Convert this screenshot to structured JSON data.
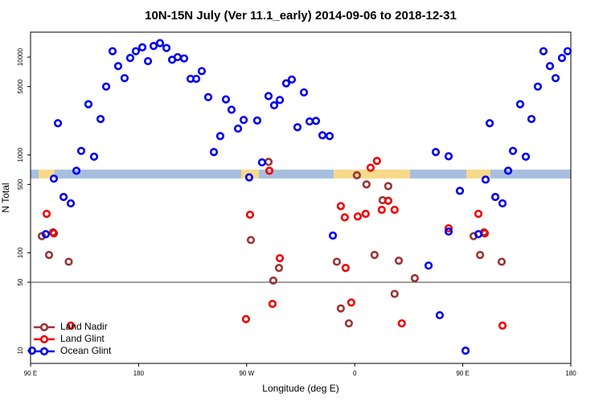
{
  "chart_data": {
    "type": "scatter",
    "title": "10N-15N July (Ver 11.1_early)   2014-09-06 to 2018-12-31",
    "xlabel": "Longitude (deg E)",
    "ylabel": "N Total",
    "log_y": true,
    "legend": "lower left",
    "hline": 50,
    "xlim": [
      90,
      540
    ],
    "xticks": [
      {
        "value": 90,
        "label": "90 E"
      },
      180,
      {
        "value": 270,
        "label": "90 W"
      },
      {
        "value": 360,
        "label": "0"
      },
      {
        "value": 450,
        "label": "90 E"
      },
      {
        "value": 540,
        "label": "180"
      }
    ],
    "ylim": [
      7.4,
      18000
    ],
    "yticks": [
      10,
      50,
      100,
      500,
      1000,
      5000,
      10000
    ],
    "series": [
      {
        "name": "Land Nadir",
        "color": "#993333",
        "x": [
          99.4,
          105.4,
          108.7,
          121.8,
          273.5,
          288.2,
          292.2,
          296.9,
          345.1,
          348.4,
          355.1,
          361.8,
          369.8,
          376.5,
          383.2,
          387.9,
          393.2,
          396.7,
          410,
          459,
          464.4,
          467.7,
          482.4
        ],
        "values": [
          148,
          95,
          162,
          81,
          135,
          850,
          52,
          70,
          81,
          27,
          19,
          620,
          500,
          95,
          345,
          480,
          38,
          83,
          55,
          148,
          95,
          162,
          81
        ]
      },
      {
        "name": "Land Glint",
        "color": "#ee0000",
        "x": [
          103.4,
          109.4,
          123.5,
          269.4,
          272.8,
          288.9,
          291.5,
          297.6,
          348.4,
          351.7,
          352.4,
          357.1,
          362.5,
          369.1,
          373.2,
          378.5,
          382.5,
          387.9,
          393.2,
          399.2,
          438.2,
          463,
          468.3,
          483.1
        ],
        "values": [
          250,
          158,
          18,
          21,
          245,
          690,
          30,
          88,
          300,
          230,
          70,
          31,
          235,
          250,
          740,
          870,
          275,
          340,
          275,
          19,
          178,
          250,
          158,
          18
        ]
      },
      {
        "name": "Ocean Glint",
        "color": "#0000ee",
        "x": [
          91.3,
          102.7,
          109.4,
          112.8,
          117.5,
          123.5,
          128.2,
          132.2,
          138.2,
          142.9,
          148.3,
          153,
          158.3,
          163,
          168.3,
          173,
          177.7,
          183.1,
          187.8,
          192.5,
          197.8,
          203.2,
          207.9,
          212.5,
          217.9,
          223.3,
          228,
          232.6,
          238,
          242.7,
          248,
          252.7,
          257.4,
          262.8,
          267.5,
          272.1,
          278.8,
          282.8,
          288.2,
          292.9,
          297.6,
          302.9,
          307.6,
          312.3,
          317.7,
          322.4,
          327.7,
          333.1,
          339.1,
          341.8,
          421.5,
          427.5,
          430.8,
          438.2,
          438.2,
          447.6,
          452.3,
          463,
          469,
          472.4,
          477.1,
          483.1,
          487.8,
          491.8,
          497.8,
          502.5,
          507.2,
          512.5,
          517.2,
          522.6,
          527.3,
          532.6,
          537.3
        ],
        "values": [
          10,
          155,
          573,
          2110,
          372,
          320,
          690,
          1100,
          3300,
          960,
          2330,
          5000,
          11500,
          8100,
          6100,
          9800,
          11500,
          12600,
          9100,
          13000,
          13900,
          12400,
          9400,
          10000,
          9700,
          6000,
          6000,
          7200,
          3900,
          1070,
          1560,
          3700,
          2900,
          1860,
          2280,
          590,
          2250,
          840,
          4000,
          3220,
          3650,
          5400,
          5900,
          1920,
          4360,
          2200,
          2230,
          1590,
          1560,
          150,
          74,
          1070,
          23,
          970,
          165,
          430,
          10,
          155,
          560,
          2110,
          372,
          320,
          690,
          1100,
          3300,
          960,
          2330,
          5000,
          11500,
          8100,
          6100,
          9800,
          11500
        ]
      }
    ]
  }
}
